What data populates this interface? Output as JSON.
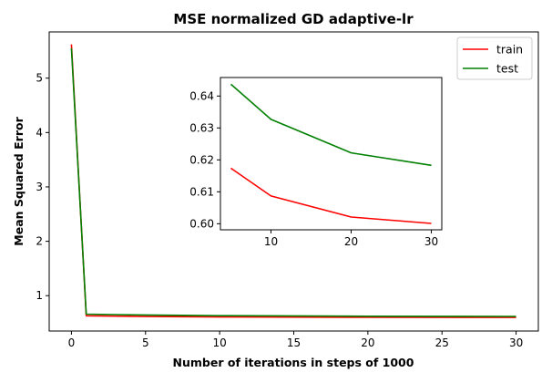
{
  "chart_data": {
    "type": "line",
    "title": "MSE normalized GD adaptive-lr",
    "xlabel": "Number of iterations in steps of 1000",
    "ylabel": "Mean Squared Error",
    "xlim": [
      -1.5,
      31.5
    ],
    "ylim": [
      0.35,
      5.85
    ],
    "xticks": [
      0,
      5,
      10,
      15,
      20,
      25,
      30
    ],
    "yticks": [
      1,
      2,
      3,
      4,
      5
    ],
    "legend_position": "top-right",
    "series": [
      {
        "name": "train",
        "color": "#ff0000",
        "x": [
          0,
          1,
          5,
          10,
          20,
          30
        ],
        "y": [
          5.62,
          0.63,
          0.6174,
          0.6087,
          0.6021,
          0.6001
        ]
      },
      {
        "name": "test",
        "color": "#008000",
        "x": [
          0,
          1,
          5,
          10,
          20,
          30
        ],
        "y": [
          5.55,
          0.66,
          0.6437,
          0.6327,
          0.6222,
          0.6183
        ]
      }
    ],
    "inset": {
      "xlim": [
        3.7,
        31.3
      ],
      "ylim": [
        0.5981,
        0.6458
      ],
      "xticks": [
        10,
        20,
        30
      ],
      "yticks": [
        0.6,
        0.61,
        0.62,
        0.63,
        0.64
      ],
      "series": [
        {
          "name": "train",
          "color": "#ff0000",
          "x": [
            5,
            10,
            20,
            30
          ],
          "y": [
            0.6174,
            0.6087,
            0.6021,
            0.6001
          ]
        },
        {
          "name": "test",
          "color": "#008000",
          "x": [
            5,
            10,
            20,
            30
          ],
          "y": [
            0.6437,
            0.6327,
            0.6222,
            0.6183
          ]
        }
      ]
    }
  }
}
